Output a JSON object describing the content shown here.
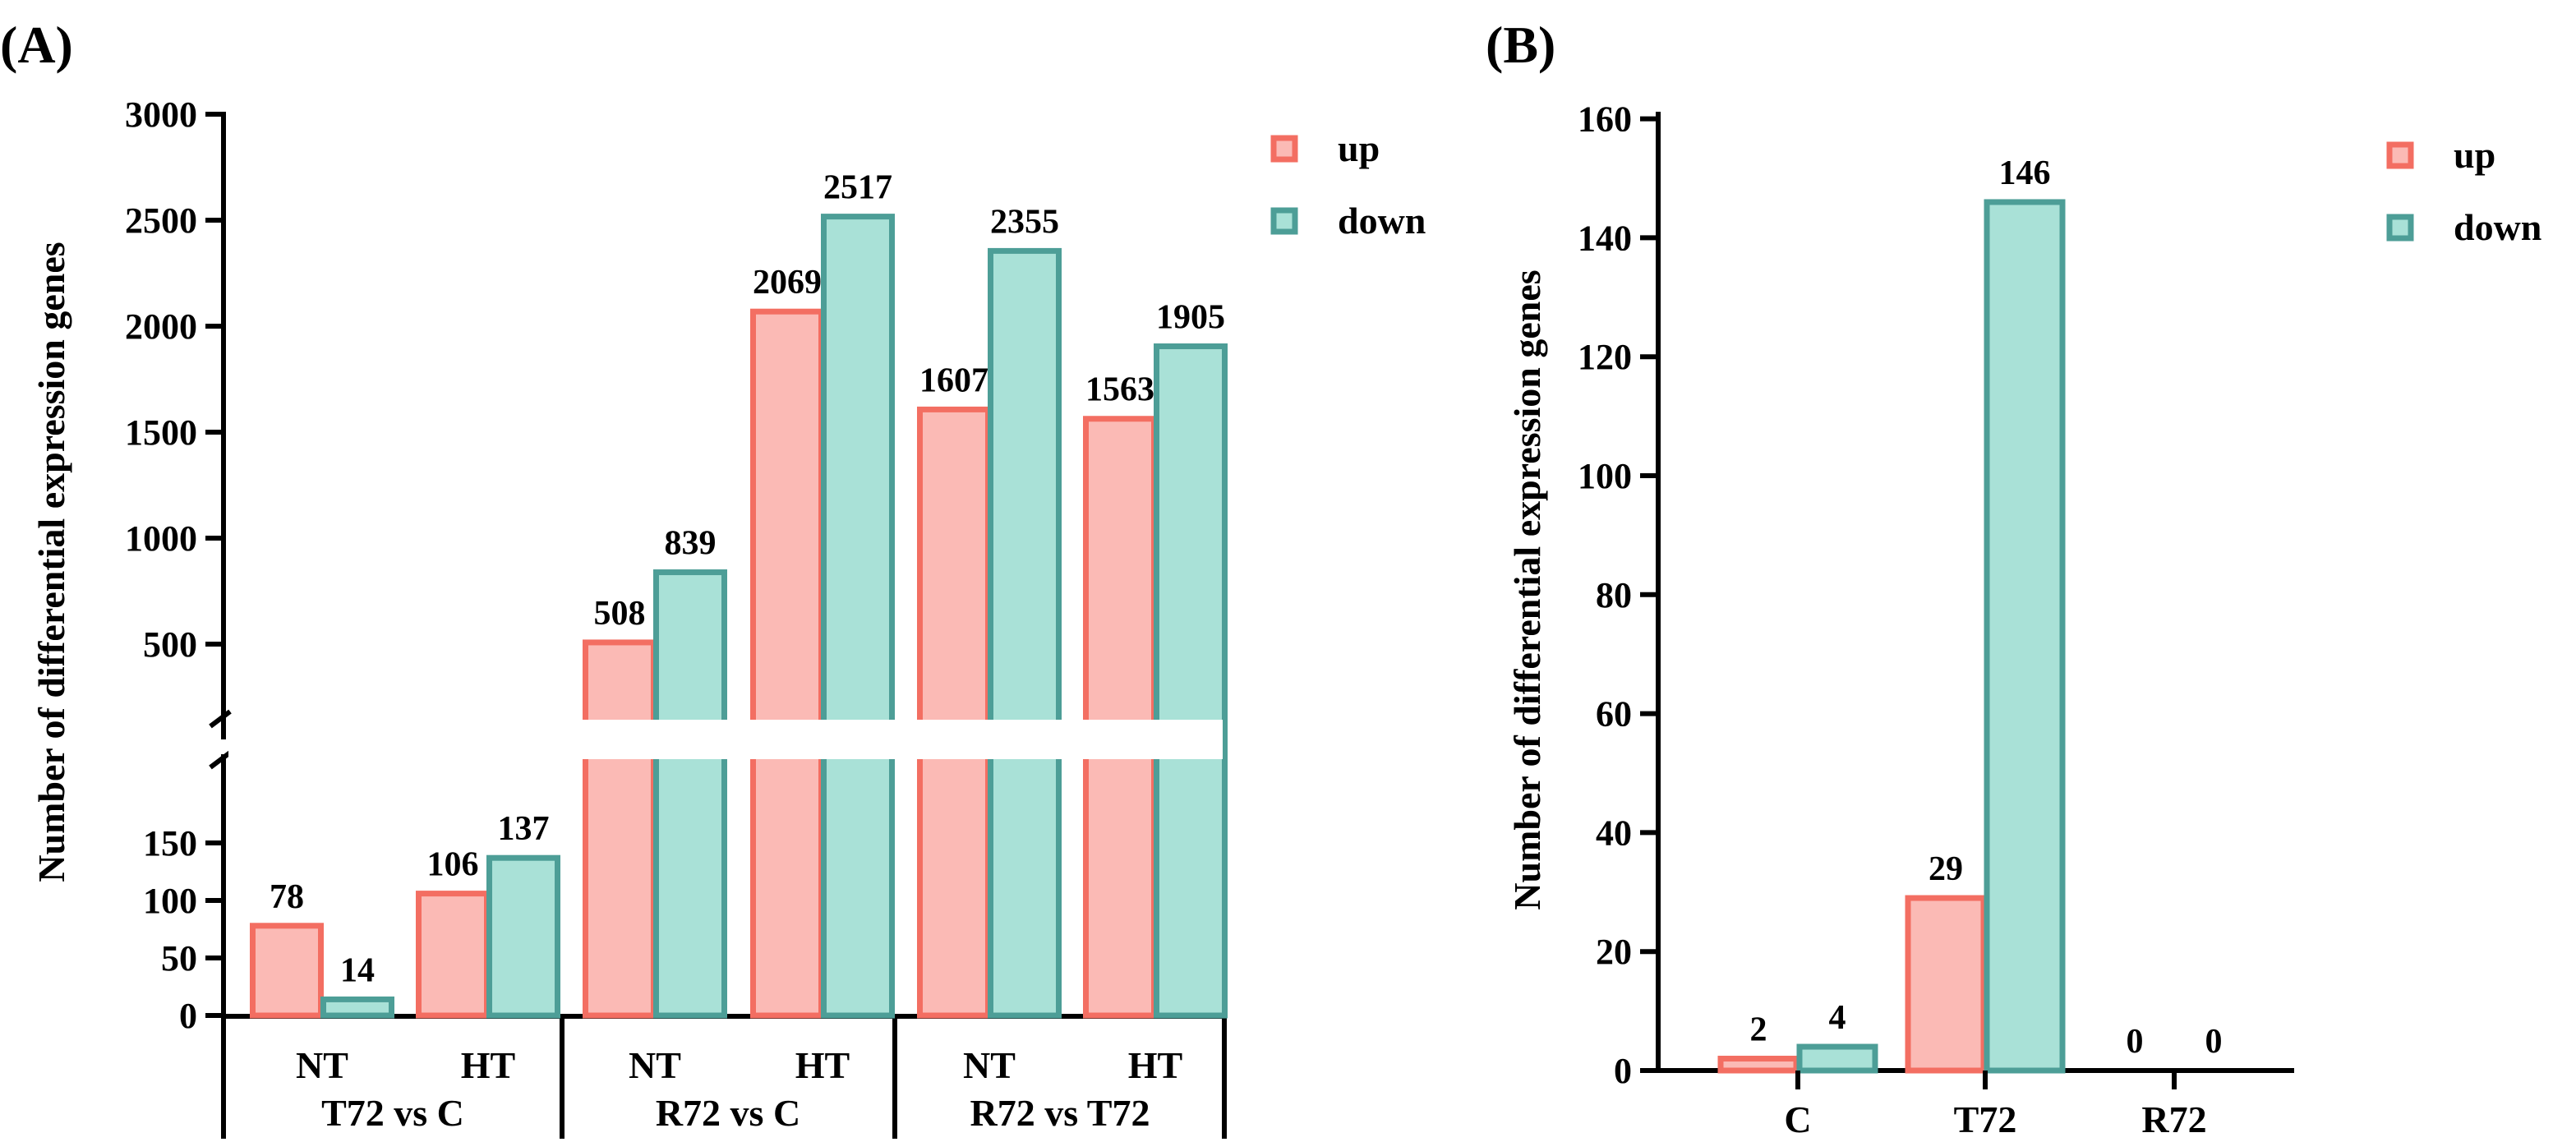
{
  "colors": {
    "up_fill": "#fbbab5",
    "up_stroke": "#f36e62",
    "down_fill": "#a9e1d7",
    "down_stroke": "#4d9e97"
  },
  "legend": {
    "up": "up",
    "down": "down"
  },
  "chart_data": [
    {
      "panel_label": "(A)",
      "type": "bar",
      "ylabel": "Number of differential expression genes",
      "ylim": [
        0,
        3000
      ],
      "y_break": [
        150,
        300
      ],
      "yticks_lower": [
        "0",
        "50",
        "100",
        "150"
      ],
      "yticks_upper": [
        "500",
        "1000",
        "1500",
        "2000",
        "2500",
        "3000"
      ],
      "categories": [
        "NT",
        "HT",
        "NT",
        "HT",
        "NT",
        "HT"
      ],
      "groups": [
        "T72 vs C",
        "R72 vs C",
        "R72 vs T72"
      ],
      "series": [
        {
          "name": "up",
          "values": [
            78,
            106,
            508,
            2069,
            1607,
            1563
          ],
          "labels": [
            "78",
            "106",
            "508",
            "2069",
            "1607",
            "1563"
          ]
        },
        {
          "name": "down",
          "values": [
            14,
            137,
            839,
            2517,
            2355,
            1905
          ],
          "labels": [
            "14",
            "137",
            "839",
            "2517",
            "2355",
            "1905"
          ]
        }
      ]
    },
    {
      "panel_label": "(B)",
      "type": "bar",
      "ylabel": "Number of differential expression genes",
      "ylim": [
        0,
        160
      ],
      "yticks": [
        "0",
        "20",
        "40",
        "60",
        "80",
        "100",
        "120",
        "140",
        "160"
      ],
      "categories": [
        "C",
        "T72",
        "R72"
      ],
      "series": [
        {
          "name": "up",
          "values": [
            2,
            29,
            0
          ],
          "labels": [
            "2",
            "29",
            "0"
          ]
        },
        {
          "name": "down",
          "values": [
            4,
            146,
            0
          ],
          "labels": [
            "4",
            "146",
            "0"
          ]
        }
      ]
    }
  ]
}
